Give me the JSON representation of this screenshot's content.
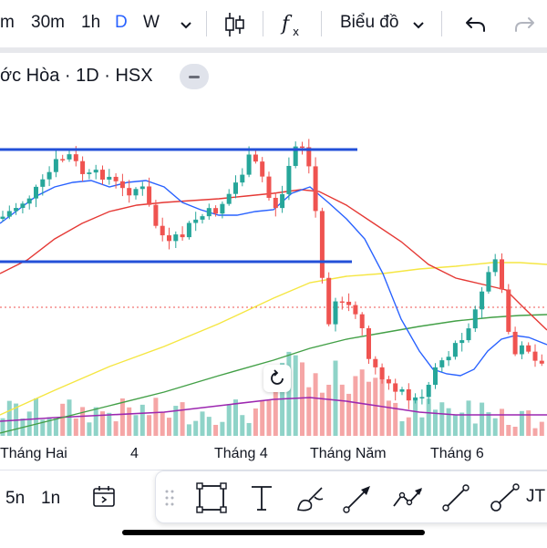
{
  "toolbar": {
    "intervals": [
      "m",
      "30m",
      "1h",
      "D",
      "W"
    ],
    "active_interval": "D",
    "chart_menu_label": "Biểu đồ",
    "icons": [
      "chevron-down-icon",
      "candles-icon",
      "indicators-icon",
      "undo-icon",
      "redo-icon"
    ]
  },
  "legend": {
    "text": "ớc Hòa · 1D · HSX"
  },
  "chart": {
    "x_labels": [
      "Tháng Hai",
      "4",
      "Tháng 4",
      "Tháng Năm",
      "Tháng 6"
    ],
    "colors": {
      "up": "#26a69a",
      "down": "#ef5350",
      "vol_up": "#8fd3c8",
      "vol_down": "#f5a6a6",
      "ma_blue": "#2962ff",
      "ma_red": "#e53935",
      "ma_yellow": "#f5e642",
      "ma_green": "#43a047",
      "ma_purple": "#9c27b0",
      "trend_line": "#2350d8"
    }
  },
  "bottom": {
    "ranges": [
      "5n",
      "1n"
    ],
    "cut_label": "JT",
    "icons": [
      "calendar-range-icon",
      "drag-handle-icon",
      "rectangle-tool-icon",
      "text-tool-icon",
      "brush-tool-icon",
      "arrow-tool-icon",
      "path-tool-icon",
      "trend-line-tool-icon",
      "ray-tool-icon"
    ]
  }
}
